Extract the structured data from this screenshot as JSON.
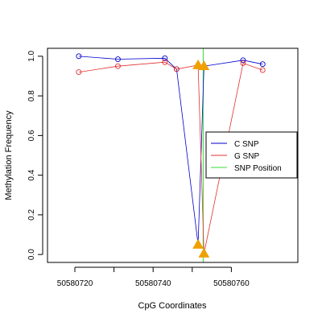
{
  "chart_data": {
    "type": "line",
    "xlabel": "CpG Coordinates",
    "ylabel": "Methylation Frequency",
    "xlim": [
      50580713,
      50580777
    ],
    "ylim": [
      -0.04,
      1.04
    ],
    "x_ticks": [
      50580720,
      50580740,
      50580760
    ],
    "y_ticks": [
      0.0,
      0.2,
      0.4,
      0.6,
      0.8,
      1.0
    ],
    "snp_position": 50580752.8,
    "series": [
      {
        "name": "C SNP",
        "color": "#0000cc",
        "points": [
          {
            "x": 50580721,
            "y": 1.0
          },
          {
            "x": 50580731,
            "y": 0.985
          },
          {
            "x": 50580743,
            "y": 0.99
          },
          {
            "x": 50580746,
            "y": 0.935
          },
          {
            "x": 50580751.5,
            "y": 0.05
          },
          {
            "x": 50580753,
            "y": 0.95
          },
          {
            "x": 50580763,
            "y": 0.98
          },
          {
            "x": 50580768,
            "y": 0.96
          }
        ]
      },
      {
        "name": "G SNP",
        "color": "#e03030",
        "points": [
          {
            "x": 50580721,
            "y": 0.92
          },
          {
            "x": 50580731,
            "y": 0.95
          },
          {
            "x": 50580743,
            "y": 0.97
          },
          {
            "x": 50580746,
            "y": 0.935
          },
          {
            "x": 50580751.5,
            "y": 0.955
          },
          {
            "x": 50580753,
            "y": 0.005
          },
          {
            "x": 50580763,
            "y": 0.965
          },
          {
            "x": 50580768,
            "y": 0.93
          }
        ]
      },
      {
        "name": "SNP Position",
        "color": "#33dd33"
      }
    ],
    "highlight_markers": {
      "color": "#f0a000",
      "points": [
        {
          "x": 50580751.5,
          "y": 0.955
        },
        {
          "x": 50580753,
          "y": 0.95
        },
        {
          "x": 50580751.5,
          "y": 0.05
        },
        {
          "x": 50580753,
          "y": 0.005
        }
      ]
    },
    "legend_position": "right"
  }
}
